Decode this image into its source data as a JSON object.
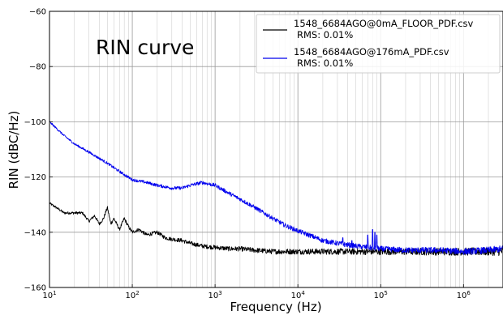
{
  "chart_data": {
    "type": "line",
    "annotation": "RIN curve",
    "xlabel": "Frequency (Hz)",
    "ylabel": "RIN (dBC/Hz)",
    "x_scale": "log",
    "xlim": [
      10,
      3000000
    ],
    "ylim": [
      -160,
      -60
    ],
    "x_ticks": [
      {
        "value": 10,
        "base": "10",
        "exp": "1"
      },
      {
        "value": 100,
        "base": "10",
        "exp": "2"
      },
      {
        "value": 1000,
        "base": "10",
        "exp": "3"
      },
      {
        "value": 10000,
        "base": "10",
        "exp": "4"
      },
      {
        "value": 100000,
        "base": "10",
        "exp": "5"
      },
      {
        "value": 1000000,
        "base": "10",
        "exp": "6"
      }
    ],
    "y_ticks": [
      {
        "value": -160,
        "label": "−160"
      },
      {
        "value": -140,
        "label": "−140"
      },
      {
        "value": -120,
        "label": "−120"
      },
      {
        "value": -100,
        "label": "−100"
      },
      {
        "value": -80,
        "label": "−80"
      },
      {
        "value": -60,
        "label": "−60"
      }
    ],
    "grid": {
      "x_major": true,
      "x_minor": true,
      "y_major": true
    },
    "legend_position": "top-right",
    "series": [
      {
        "name": "1548_6684AGO@0mA_FLOOR_PDF.csv",
        "legend_note": "RMS: 0.01%",
        "color": "#000000",
        "x": [
          10,
          12,
          15,
          20,
          25,
          30,
          35,
          40,
          45,
          50,
          55,
          60,
          70,
          80,
          90,
          100,
          120,
          150,
          200,
          250,
          300,
          400,
          500,
          700,
          1000,
          1500,
          2000,
          3000,
          5000,
          7000,
          10000,
          20000,
          30000,
          50000,
          70000,
          100000,
          200000,
          500000,
          1000000,
          2000000,
          3000000
        ],
        "y": [
          -129.5,
          -131,
          -133,
          -133,
          -133,
          -136,
          -134,
          -137,
          -135,
          -131,
          -137,
          -135,
          -139,
          -135,
          -138,
          -140,
          -139,
          -141,
          -140,
          -142,
          -142.5,
          -143,
          -144,
          -145,
          -145.5,
          -146,
          -146,
          -146.5,
          -147,
          -147,
          -147,
          -147,
          -147,
          -147,
          -147,
          -147,
          -147,
          -147,
          -147,
          -147,
          -147
        ],
        "noise": 1.2
      },
      {
        "name": "1548_6684AGO@176mA_PDF.csv",
        "legend_note": "RMS: 0.01%",
        "color": "#0000ee",
        "x": [
          10,
          15,
          20,
          30,
          50,
          70,
          100,
          150,
          200,
          300,
          400,
          500,
          700,
          1000,
          1500,
          2000,
          3000,
          5000,
          7000,
          10000,
          15000,
          20000,
          30000,
          50000,
          70000,
          100000,
          200000,
          500000,
          1000000,
          2000000,
          3000000
        ],
        "y": [
          -100,
          -105,
          -108,
          -111,
          -115,
          -118,
          -121,
          -122,
          -123,
          -124,
          -124,
          -123,
          -122,
          -123,
          -126,
          -128,
          -131,
          -135,
          -137.5,
          -139.5,
          -141.5,
          -143,
          -144,
          -145,
          -145.5,
          -146,
          -146.5,
          -146.5,
          -147,
          -146.5,
          -146
        ],
        "noise": 1.0,
        "spikes": [
          {
            "x": 35000,
            "y": -142
          },
          {
            "x": 45000,
            "y": -143
          },
          {
            "x": 70000,
            "y": -141
          },
          {
            "x": 80000,
            "y": -139
          },
          {
            "x": 85000,
            "y": -140
          },
          {
            "x": 90000,
            "y": -141
          }
        ]
      }
    ]
  }
}
